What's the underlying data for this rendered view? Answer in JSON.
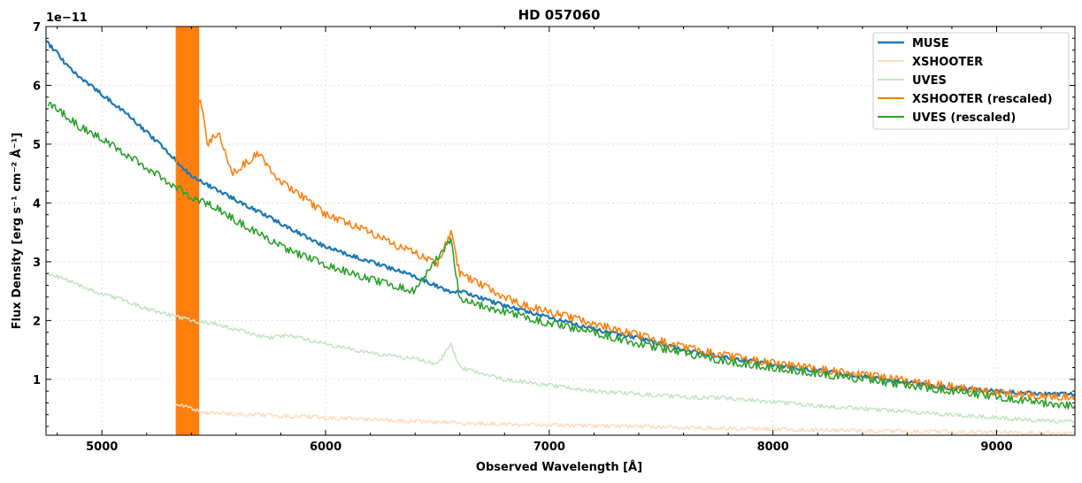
{
  "chart_data": {
    "type": "line",
    "title": "HD 057060",
    "xlabel": "Observed Wavelength [Å]",
    "ylabel": "Flux Density [erg s⁻¹ cm⁻² Å⁻¹]",
    "y_scale_label": "1e−11",
    "xlim": [
      4750,
      9350
    ],
    "ylim": [
      0.05,
      7
    ],
    "x_ticks": [
      5000,
      6000,
      7000,
      8000,
      9000
    ],
    "y_ticks": [
      1,
      2,
      3,
      4,
      5,
      6,
      7
    ],
    "grid": true,
    "legend_position": "top-right",
    "series": [
      {
        "name": "MUSE",
        "color": "#1f77b4",
        "points": [
          [
            4750,
            6.75
          ],
          [
            4800,
            6.55
          ],
          [
            4850,
            6.3
          ],
          [
            4900,
            6.15
          ],
          [
            5000,
            5.85
          ],
          [
            5100,
            5.55
          ],
          [
            5200,
            5.2
          ],
          [
            5300,
            4.85
          ],
          [
            5400,
            4.45
          ],
          [
            5500,
            4.25
          ],
          [
            5600,
            4.05
          ],
          [
            5700,
            3.85
          ],
          [
            5800,
            3.65
          ],
          [
            5900,
            3.45
          ],
          [
            6000,
            3.25
          ],
          [
            6200,
            3.0
          ],
          [
            6400,
            2.75
          ],
          [
            6550,
            2.5
          ],
          [
            6600,
            2.5
          ],
          [
            6800,
            2.25
          ],
          [
            7000,
            2.05
          ],
          [
            7200,
            1.85
          ],
          [
            7400,
            1.7
          ],
          [
            7600,
            1.5
          ],
          [
            7800,
            1.37
          ],
          [
            8000,
            1.25
          ],
          [
            8200,
            1.15
          ],
          [
            8400,
            1.05
          ],
          [
            8600,
            0.95
          ],
          [
            8800,
            0.85
          ],
          [
            9000,
            0.8
          ],
          [
            9200,
            0.75
          ],
          [
            9350,
            0.75
          ]
        ]
      },
      {
        "name": "XSHOOTER",
        "color": "#ffdcc1",
        "points": [
          [
            5330,
            0.6
          ],
          [
            5400,
            0.5
          ],
          [
            5450,
            0.43
          ],
          [
            5500,
            0.43
          ],
          [
            5600,
            0.41
          ],
          [
            5800,
            0.38
          ],
          [
            6000,
            0.35
          ],
          [
            6500,
            0.27
          ],
          [
            7000,
            0.22
          ],
          [
            7500,
            0.19
          ],
          [
            8000,
            0.15
          ],
          [
            8500,
            0.12
          ],
          [
            9000,
            0.1
          ],
          [
            9350,
            0.08
          ]
        ]
      },
      {
        "name": "UVES",
        "color": "#c4e5c2",
        "points": [
          [
            4760,
            2.8
          ],
          [
            4800,
            2.75
          ],
          [
            4900,
            2.6
          ],
          [
            5000,
            2.45
          ],
          [
            5100,
            2.35
          ],
          [
            5200,
            2.2
          ],
          [
            5300,
            2.1
          ],
          [
            5400,
            2.0
          ],
          [
            5500,
            1.95
          ],
          [
            5600,
            1.85
          ],
          [
            5740,
            1.7
          ],
          [
            5830,
            1.75
          ],
          [
            6000,
            1.6
          ],
          [
            6200,
            1.45
          ],
          [
            6400,
            1.35
          ],
          [
            6500,
            1.25
          ],
          [
            6560,
            1.6
          ],
          [
            6600,
            1.2
          ],
          [
            6700,
            1.1
          ],
          [
            6800,
            1.0
          ],
          [
            7000,
            0.9
          ],
          [
            7200,
            0.8
          ],
          [
            7400,
            0.75
          ],
          [
            7600,
            0.7
          ],
          [
            7800,
            0.68
          ],
          [
            8000,
            0.62
          ],
          [
            8200,
            0.55
          ],
          [
            8400,
            0.5
          ],
          [
            8600,
            0.45
          ],
          [
            8800,
            0.4
          ],
          [
            9000,
            0.35
          ],
          [
            9200,
            0.3
          ],
          [
            9350,
            0.28
          ]
        ]
      },
      {
        "name": "XSHOOTER (rescaled)",
        "color": "#ff7f0e",
        "points": [
          [
            5330,
            4.7
          ],
          [
            5400,
            5.0
          ],
          [
            5440,
            5.8
          ],
          [
            5470,
            5.0
          ],
          [
            5520,
            5.2
          ],
          [
            5580,
            4.5
          ],
          [
            5650,
            4.7
          ],
          [
            5700,
            4.85
          ],
          [
            5750,
            4.6
          ],
          [
            5800,
            4.35
          ],
          [
            5900,
            4.1
          ],
          [
            6000,
            3.8
          ],
          [
            6100,
            3.65
          ],
          [
            6200,
            3.5
          ],
          [
            6300,
            3.3
          ],
          [
            6400,
            3.15
          ],
          [
            6500,
            2.95
          ],
          [
            6560,
            3.5
          ],
          [
            6600,
            2.8
          ],
          [
            6700,
            2.6
          ],
          [
            6800,
            2.4
          ],
          [
            6900,
            2.25
          ],
          [
            7000,
            2.15
          ],
          [
            7200,
            1.95
          ],
          [
            7400,
            1.75
          ],
          [
            7600,
            1.55
          ],
          [
            7800,
            1.4
          ],
          [
            8000,
            1.28
          ],
          [
            8200,
            1.18
          ],
          [
            8400,
            1.08
          ],
          [
            8600,
            0.98
          ],
          [
            8800,
            0.88
          ],
          [
            9000,
            0.78
          ],
          [
            9200,
            0.72
          ],
          [
            9350,
            0.7
          ]
        ]
      },
      {
        "name": "UVES (rescaled)",
        "color": "#2ca02c",
        "points": [
          [
            4760,
            5.7
          ],
          [
            4800,
            5.6
          ],
          [
            4900,
            5.3
          ],
          [
            5000,
            5.1
          ],
          [
            5100,
            4.85
          ],
          [
            5200,
            4.6
          ],
          [
            5300,
            4.35
          ],
          [
            5400,
            4.1
          ],
          [
            5500,
            3.95
          ],
          [
            5600,
            3.7
          ],
          [
            5740,
            3.4
          ],
          [
            5830,
            3.2
          ],
          [
            5900,
            3.1
          ],
          [
            6000,
            2.95
          ],
          [
            6200,
            2.7
          ],
          [
            6400,
            2.5
          ],
          [
            6560,
            3.4
          ],
          [
            6600,
            2.35
          ],
          [
            6800,
            2.15
          ],
          [
            7000,
            1.95
          ],
          [
            7200,
            1.8
          ],
          [
            7400,
            1.6
          ],
          [
            7600,
            1.45
          ],
          [
            7800,
            1.3
          ],
          [
            8000,
            1.2
          ],
          [
            8200,
            1.1
          ],
          [
            8400,
            1.0
          ],
          [
            8600,
            0.9
          ],
          [
            8800,
            0.8
          ],
          [
            9000,
            0.7
          ],
          [
            9200,
            0.6
          ],
          [
            9350,
            0.55
          ]
        ]
      }
    ]
  }
}
